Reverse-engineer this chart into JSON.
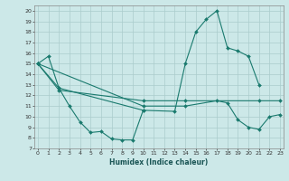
{
  "title": "",
  "xlabel": "Humidex (Indice chaleur)",
  "bg_color": "#cce8e8",
  "grid_color": "#aacccc",
  "line_color": "#1a7a6e",
  "xticks": [
    0,
    1,
    2,
    3,
    4,
    5,
    6,
    7,
    8,
    9,
    10,
    11,
    12,
    13,
    14,
    15,
    16,
    17,
    18,
    19,
    20,
    21,
    22,
    23
  ],
  "yticks": [
    7,
    8,
    9,
    10,
    11,
    12,
    13,
    14,
    15,
    16,
    17,
    18,
    19,
    20
  ],
  "xlim": [
    -0.3,
    23.3
  ],
  "ylim": [
    7,
    20.5
  ],
  "series": [
    {
      "x": [
        0,
        1,
        2,
        3,
        4,
        5,
        6,
        7,
        8,
        9,
        10
      ],
      "y": [
        15.0,
        15.7,
        12.7,
        11.0,
        9.5,
        8.5,
        8.6,
        7.9,
        7.8,
        7.8,
        10.6
      ]
    },
    {
      "x": [
        0,
        2,
        10,
        13,
        14,
        15,
        16,
        17,
        18,
        19,
        20,
        21
      ],
      "y": [
        15.0,
        12.7,
        10.6,
        10.5,
        15.0,
        18.0,
        19.2,
        20.0,
        16.5,
        16.2,
        15.7,
        13.0
      ]
    },
    {
      "x": [
        0,
        10,
        14,
        17,
        18,
        19,
        20,
        21,
        22,
        23
      ],
      "y": [
        15.0,
        11.0,
        11.0,
        11.5,
        11.3,
        9.7,
        9.0,
        8.8,
        10.0,
        10.2
      ]
    },
    {
      "x": [
        0,
        2,
        10,
        14,
        21,
        23
      ],
      "y": [
        15.0,
        12.5,
        11.5,
        11.5,
        11.5,
        11.5
      ]
    }
  ]
}
